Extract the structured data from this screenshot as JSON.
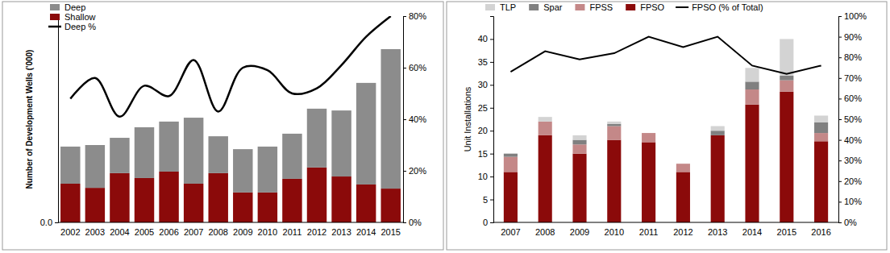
{
  "chart_data": [
    {
      "type": "bar",
      "y_label": "Number of Development Wells ('000)",
      "categories": [
        "2002",
        "2003",
        "2004",
        "2005",
        "2006",
        "2007",
        "2008",
        "2009",
        "2010",
        "2011",
        "2012",
        "2013",
        "2014",
        "2015"
      ],
      "series": [
        {
          "name": "Deep",
          "type": "bar",
          "color": "#8c8c8c",
          "values": [
            1.44,
            1.66,
            1.37,
            1.97,
            1.94,
            2.56,
            1.43,
            1.68,
            1.78,
            1.75,
            2.28,
            2.56,
            3.94,
            5.41
          ]
        },
        {
          "name": "Shallow",
          "type": "bar",
          "color": "#8b0a0a",
          "values": [
            1.5,
            1.34,
            1.91,
            1.72,
            1.97,
            1.5,
            1.91,
            1.16,
            1.16,
            1.69,
            2.13,
            1.78,
            1.47,
            1.31
          ]
        },
        {
          "name": "Deep %",
          "type": "line",
          "axis": "y2",
          "color": "#000000",
          "line_style": "solid",
          "values": [
            48,
            56,
            41,
            53,
            49,
            63,
            43,
            60,
            59,
            50,
            52,
            61,
            72,
            80
          ]
        }
      ],
      "ylim": [
        0,
        8
      ],
      "yticks": [
        {
          "value": 0,
          "label": "0.0"
        }
      ],
      "y2lim": [
        0,
        80
      ],
      "y2ticks": [
        {
          "value": 0,
          "label": "0%"
        },
        {
          "value": 20,
          "label": "20%"
        },
        {
          "value": 40,
          "label": "40%"
        },
        {
          "value": 60,
          "label": "60%"
        },
        {
          "value": 80,
          "label": "80%"
        }
      ],
      "stacked": true,
      "grid": false,
      "legend": "upper left"
    },
    {
      "type": "bar",
      "y_label": "Unit Installations",
      "categories": [
        "2007",
        "2008",
        "2009",
        "2010",
        "2011",
        "2012",
        "2013",
        "2014",
        "2015",
        "2016"
      ],
      "series": [
        {
          "name": "TLP",
          "type": "bar",
          "color": "#d3d3d3",
          "values": [
            0,
            1,
            1,
            0.5,
            0,
            0,
            1,
            3,
            8,
            1.5
          ]
        },
        {
          "name": "Spar",
          "type": "bar",
          "color": "#808080",
          "values": [
            0.7,
            0,
            1,
            0.5,
            0,
            0,
            1,
            1.7,
            1,
            2.3
          ]
        },
        {
          "name": "FPSS",
          "type": "bar",
          "color": "#c48888",
          "values": [
            3.3,
            3,
            2,
            3,
            2,
            1.8,
            0,
            3.3,
            2.5,
            1.8
          ]
        },
        {
          "name": "FPSO",
          "type": "bar",
          "color": "#8b0a0a",
          "values": [
            11,
            19,
            15,
            18,
            17.5,
            11,
            19,
            25.7,
            28.5,
            17.7
          ]
        },
        {
          "name": "FPSO (% of Total)",
          "type": "line",
          "axis": "y2",
          "color": "#000000",
          "line_style": "solid",
          "values": [
            73,
            83,
            79,
            82,
            90,
            85,
            90,
            76,
            72,
            76
          ]
        }
      ],
      "ylim": [
        0,
        45
      ],
      "yticks": [
        0,
        5,
        10,
        15,
        20,
        25,
        30,
        35,
        40
      ],
      "y2lim": [
        0,
        100
      ],
      "y2ticks": [
        {
          "value": 0,
          "label": "0%"
        },
        {
          "value": 10,
          "label": "10%"
        },
        {
          "value": 20,
          "label": "20%"
        },
        {
          "value": 30,
          "label": "30%"
        },
        {
          "value": 40,
          "label": "40%"
        },
        {
          "value": 50,
          "label": "50%"
        },
        {
          "value": 60,
          "label": "60%"
        },
        {
          "value": 70,
          "label": "70%"
        },
        {
          "value": 80,
          "label": "80%"
        },
        {
          "value": 90,
          "label": "90%"
        },
        {
          "value": 100,
          "label": "100%"
        }
      ],
      "stacked": true,
      "grid": false,
      "legend": "upper left"
    }
  ]
}
